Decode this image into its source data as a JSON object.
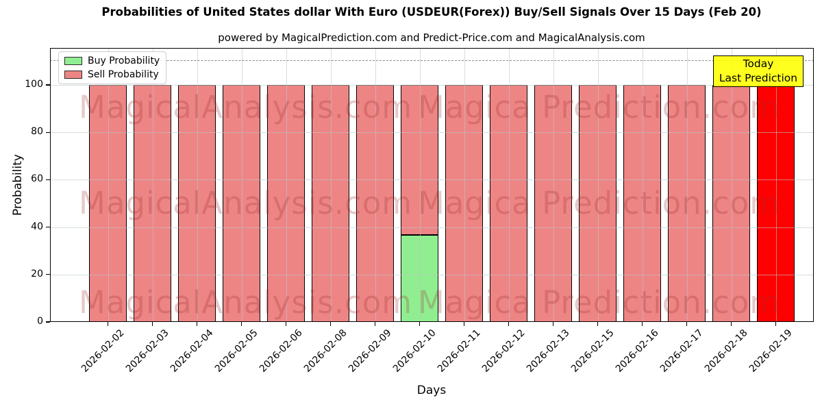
{
  "title": "Probabilities of United States dollar With Euro (USDEUR(Forex)) Buy/Sell Signals Over 15 Days (Feb 20)",
  "subtitle": "powered by MagicalPrediction.com and Predict-Price.com and MagicalAnalysis.com",
  "watermark": {
    "left_text": "MagicalAnalysis.com",
    "right_text": "Magica Prediction.com"
  },
  "legend": {
    "items": [
      {
        "label": "Buy Probability",
        "color": "#90ee90"
      },
      {
        "label": "Sell Probability",
        "color": "#ee8585"
      }
    ]
  },
  "annotation_box": {
    "line1": "Today",
    "line2": "Last Prediction",
    "bg_color": "#ffff33"
  },
  "colors": {
    "buy": "#90ee90",
    "sell": "#ee8585",
    "today_bar": "#ff0000",
    "grid": "#b9c6c6",
    "dashed_line": "#8a8a8a",
    "bar_edge": "#000000"
  },
  "chart_data": {
    "type": "bar",
    "stacked": true,
    "title": "Probabilities of United States dollar With Euro (USDEUR(Forex)) Buy/Sell Signals Over 15 Days (Feb 20)",
    "xlabel": "Days",
    "ylabel": "Probability",
    "ylim": [
      0,
      115.6
    ],
    "yticks": [
      0,
      20,
      40,
      60,
      80,
      100
    ],
    "dashed_line_y": 110,
    "grid": true,
    "legend_position": "upper left",
    "categories": [
      "2026-02-02",
      "2026-02-03",
      "2026-02-04",
      "2026-02-05",
      "2026-02-06",
      "2026-02-08",
      "2026-02-09",
      "2026-02-10",
      "2026-02-11",
      "2026-02-12",
      "2026-02-13",
      "2026-02-15",
      "2026-02-16",
      "2026-02-17",
      "2026-02-18",
      "2026-02-19"
    ],
    "series": [
      {
        "name": "Buy Probability",
        "color": "#90ee90",
        "values": [
          0,
          0,
          0,
          0,
          0,
          0,
          0,
          36.8,
          0,
          0,
          0,
          0,
          0,
          0,
          0,
          0
        ]
      },
      {
        "name": "Sell Probability",
        "color": "#ee8585",
        "values": [
          100,
          100,
          100,
          100,
          100,
          100,
          100,
          63.2,
          100,
          100,
          100,
          100,
          100,
          100,
          100,
          0
        ]
      },
      {
        "name": "Today Last Prediction",
        "color": "#ff0000",
        "values": [
          0,
          0,
          0,
          0,
          0,
          0,
          0,
          0,
          0,
          0,
          0,
          0,
          0,
          0,
          0,
          100
        ]
      }
    ]
  }
}
